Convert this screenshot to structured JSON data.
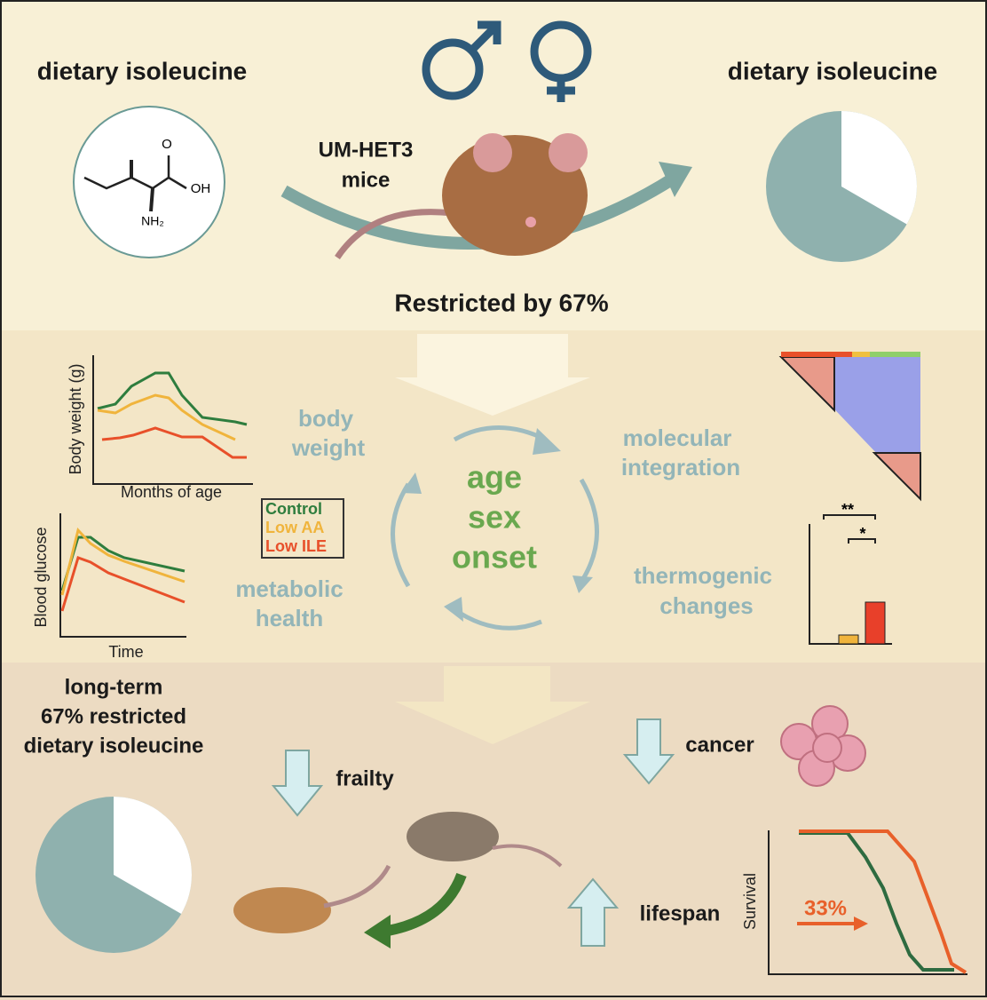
{
  "top": {
    "left_label": "dietary isoleucine",
    "right_label": "dietary isoleucine",
    "mice_label": [
      "UM-HET3",
      "mice"
    ],
    "molecule_labels": [
      "O",
      "OH",
      "NH₂"
    ],
    "restriction": "Restricted by 67%"
  },
  "middle": {
    "body_weight_chart": {
      "y_label": "Body weight (g)",
      "x_label": "Months of age"
    },
    "glucose_chart": {
      "y_label": "Blood glucose",
      "x_label": "Time"
    },
    "legend": [
      "Control",
      "Low AA",
      "Low ILE"
    ],
    "left_topics": [
      [
        "body",
        "weight"
      ],
      [
        "metabolic",
        "health"
      ]
    ],
    "center": [
      "age",
      "sex",
      "onset"
    ],
    "right_topics": [
      [
        "molecular",
        "integration"
      ],
      [
        "thermogenic",
        "changes"
      ]
    ],
    "significance": [
      "**",
      "*"
    ]
  },
  "bottom": {
    "intervention": [
      "long-term",
      "67% restricted",
      "dietary isoleucine"
    ],
    "outcomes": [
      "frailty",
      "cancer",
      "lifespan"
    ],
    "survival_chart": {
      "y_label": "Survival",
      "annotation": "33%"
    }
  }
}
